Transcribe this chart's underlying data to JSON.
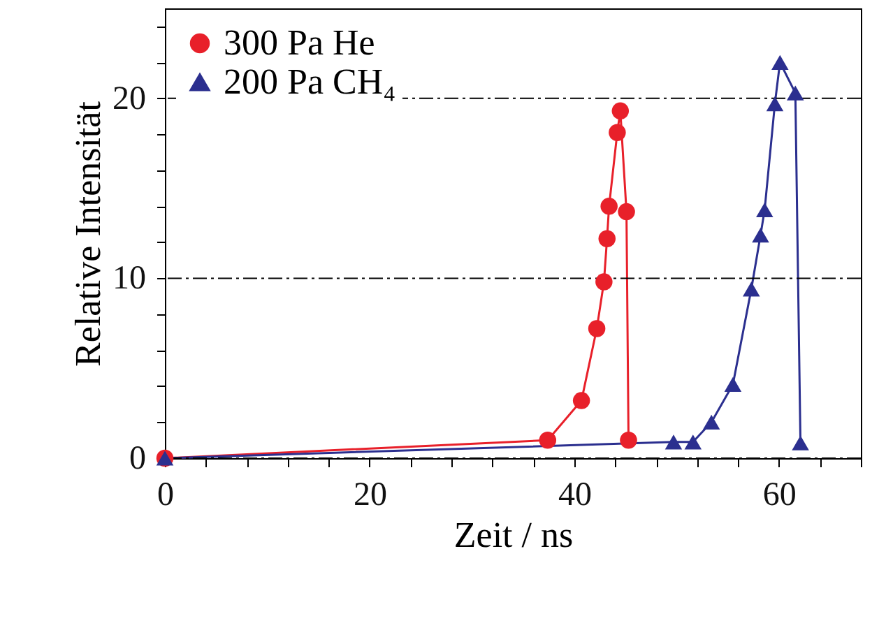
{
  "chart_data": {
    "type": "line",
    "xlabel": "Zeit / ns",
    "ylabel": "Relative Intensität",
    "xlim": [
      0,
      68
    ],
    "ylim": [
      0,
      25
    ],
    "xticks": [
      0,
      {
        "value": 4,
        "label": null
      },
      {
        "value": 8,
        "label": null
      },
      {
        "value": 12,
        "label": null
      },
      {
        "value": 16,
        "label": null
      },
      20,
      {
        "value": 24,
        "label": null
      },
      {
        "value": 28,
        "label": null
      },
      {
        "value": 32,
        "label": null
      },
      {
        "value": 36,
        "label": null
      },
      40,
      {
        "value": 44,
        "label": null
      },
      {
        "value": 48,
        "label": null
      },
      {
        "value": 52,
        "label": null
      },
      {
        "value": 56,
        "label": null
      },
      60,
      {
        "value": 64,
        "label": null
      },
      {
        "value": 68,
        "label": null
      }
    ],
    "yticks": [
      0,
      {
        "value": 2,
        "label": null
      },
      {
        "value": 4,
        "label": null
      },
      {
        "value": 6,
        "label": null
      },
      {
        "value": 8,
        "label": null
      },
      10,
      {
        "value": 12,
        "label": null
      },
      {
        "value": 14,
        "label": null
      },
      {
        "value": 16,
        "label": null
      },
      {
        "value": 18,
        "label": null
      },
      20,
      {
        "value": 22,
        "label": null
      },
      {
        "value": 24,
        "label": null
      }
    ],
    "grid": "y",
    "legend": "top left",
    "line_style": "solid",
    "series": [
      {
        "name": "300 Pa He",
        "color": "#e8202a",
        "marker": "circle",
        "x": [
          0,
          37.4,
          40.7,
          42.2,
          42.9,
          43.2,
          43.4,
          44.2,
          44.5,
          45.1,
          45.3
        ],
        "values": [
          0,
          1.0,
          3.2,
          7.2,
          9.8,
          12.2,
          14.0,
          18.1,
          19.3,
          13.7,
          1.0
        ]
      },
      {
        "name": "200 Pa CH₄",
        "color": "#2b2f8f",
        "marker": "triangle",
        "x": [
          0,
          49.7,
          51.6,
          53.4,
          55.5,
          57.3,
          58.2,
          58.6,
          59.6,
          60.1,
          61.6,
          62.1
        ],
        "values": [
          0,
          0.9,
          0.9,
          2.0,
          4.1,
          9.4,
          12.4,
          13.8,
          19.7,
          22.0,
          20.3,
          0.85
        ]
      }
    ]
  }
}
